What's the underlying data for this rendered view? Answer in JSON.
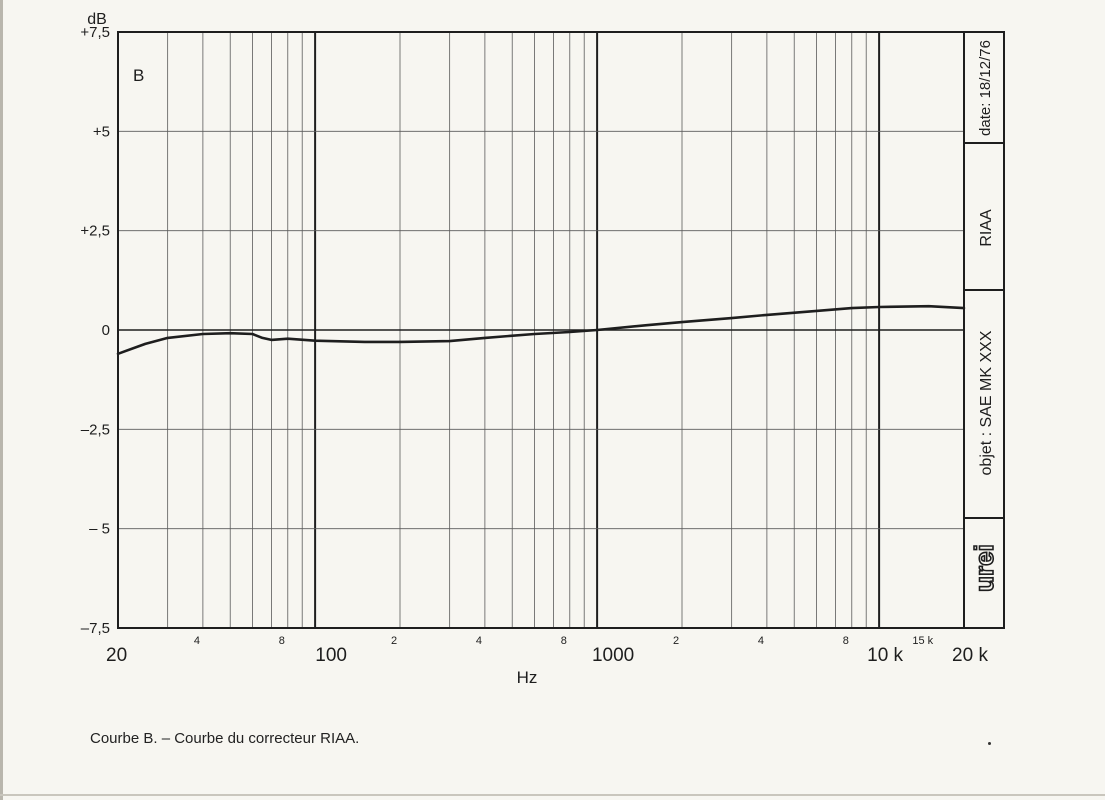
{
  "colors": {
    "paper": "#f7f6f1",
    "ink": "#1e1e1e",
    "grid": "#5a5a5a"
  },
  "caption": "Courbe B. – Courbe du correcteur RIAA.",
  "side_panel": {
    "date": "date: 18/12/76",
    "curve": "RIAA",
    "object": "objet : SAE MK XXX",
    "logo": "urei"
  },
  "chart_data": {
    "type": "line",
    "panel_label": "B",
    "title": "",
    "xlabel": "Hz",
    "ylabel": "dB",
    "xscale": "log",
    "xlim": [
      20,
      20000
    ],
    "ylim": [
      -7.5,
      7.5
    ],
    "grid": true,
    "x_ticks": [
      {
        "value": 20,
        "label": "20",
        "major": true
      },
      {
        "value": 40,
        "label": "4",
        "major": false
      },
      {
        "value": 80,
        "label": "8",
        "major": false
      },
      {
        "value": 100,
        "label": "100",
        "major": true
      },
      {
        "value": 200,
        "label": "2",
        "major": false
      },
      {
        "value": 400,
        "label": "4",
        "major": false
      },
      {
        "value": 800,
        "label": "8",
        "major": false
      },
      {
        "value": 1000,
        "label": "1000",
        "major": true
      },
      {
        "value": 2000,
        "label": "2",
        "major": false
      },
      {
        "value": 4000,
        "label": "4",
        "major": false
      },
      {
        "value": 8000,
        "label": "8",
        "major": false
      },
      {
        "value": 10000,
        "label": "10 k",
        "major": true
      },
      {
        "value": 15000,
        "label": "15 k",
        "major": false
      },
      {
        "value": 20000,
        "label": "20 k",
        "major": true
      }
    ],
    "y_ticks": [
      {
        "value": 7.5,
        "label": "+7,5"
      },
      {
        "value": 5,
        "label": "+5"
      },
      {
        "value": 2.5,
        "label": "+2,5"
      },
      {
        "value": 0,
        "label": "0"
      },
      {
        "value": -2.5,
        "label": "–2,5"
      },
      {
        "value": -5,
        "label": "– 5"
      },
      {
        "value": -7.5,
        "label": "–7,5"
      }
    ],
    "series": [
      {
        "x": [
          20,
          25,
          30,
          40,
          50,
          60,
          65,
          70,
          80,
          100,
          150,
          200,
          300,
          400,
          600,
          800,
          1000,
          1500,
          2000,
          3000,
          4000,
          6000,
          8000,
          10000,
          15000,
          20000
        ],
        "y": [
          -0.6,
          -0.35,
          -0.2,
          -0.1,
          -0.08,
          -0.1,
          -0.2,
          -0.25,
          -0.22,
          -0.27,
          -0.3,
          -0.3,
          -0.28,
          -0.2,
          -0.1,
          -0.05,
          0,
          0.12,
          0.2,
          0.3,
          0.38,
          0.48,
          0.55,
          0.58,
          0.6,
          0.55
        ]
      }
    ]
  }
}
